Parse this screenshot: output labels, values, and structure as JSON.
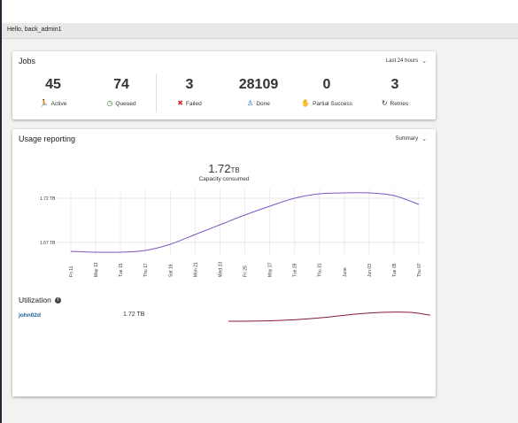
{
  "header": {
    "greeting": "Hello, back_admin1"
  },
  "jobs": {
    "title": "Jobs",
    "range_label": "Last 24 hours",
    "stats": [
      {
        "value": "45",
        "label": "Active",
        "icon": "running-person-icon",
        "color": "#2e8b2e"
      },
      {
        "value": "74",
        "label": "Queued",
        "icon": "clock-icon",
        "color": "#2e7d32"
      },
      {
        "value": "3",
        "label": "Failed",
        "icon": "error-circle-icon",
        "color": "#d32f2f"
      },
      {
        "value": "28109",
        "label": "Done",
        "icon": "person-done-icon",
        "color": "#1565c0"
      },
      {
        "value": "0",
        "label": "Partial Success",
        "icon": "hand-icon",
        "color": "#f0a020"
      },
      {
        "value": "3",
        "label": "Retries",
        "icon": "retry-icon",
        "color": "#333333"
      }
    ]
  },
  "usage": {
    "title": "Usage reporting",
    "mode_label": "Summary",
    "capacity_value": "1.72",
    "capacity_unit": "TB",
    "capacity_label": "Capacity consumed",
    "chart_data": {
      "type": "line",
      "x": [
        "Fri 11",
        "May 13",
        "Tue 15",
        "Thu 17",
        "Sat 19",
        "Mon 21",
        "Wed 23",
        "Fri 25",
        "May 27",
        "Tue 29",
        "Thu 31",
        "June",
        "Jun 03",
        "Tue 05",
        "Thu 07"
      ],
      "y_ticks": [
        "1.72 TB",
        "1.67 TB"
      ],
      "series": [
        {
          "color": "#7e57c2",
          "values": [
            1.66,
            1.659,
            1.659,
            1.661,
            1.668,
            1.679,
            1.69,
            1.701,
            1.711,
            1.72,
            1.725,
            1.726,
            1.726,
            1.723,
            1.713
          ]
        }
      ],
      "ylim": [
        1.655,
        1.73
      ],
      "grid": true
    },
    "utilization": {
      "title": "Utilization",
      "rows": [
        {
          "user": "john02d",
          "value": "1.72 TB",
          "spark_color": "#8b1a3a"
        }
      ]
    }
  }
}
